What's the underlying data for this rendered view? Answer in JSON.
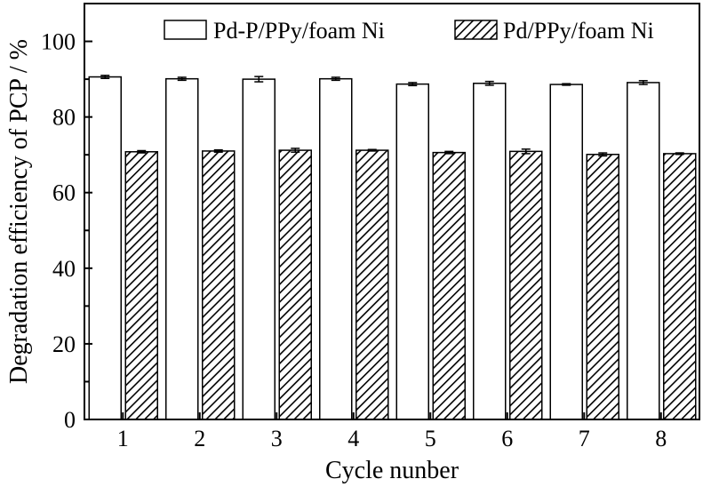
{
  "chart_data": {
    "type": "bar",
    "title": "",
    "xlabel": "Cycle nunber",
    "ylabel": "Degradation efficiency of PCP / %",
    "categories": [
      "1",
      "2",
      "3",
      "4",
      "5",
      "6",
      "7",
      "8"
    ],
    "ylim": [
      0,
      110
    ],
    "yticks": [
      "0",
      "20",
      "40",
      "60",
      "80",
      "100"
    ],
    "grid": false,
    "legend_position": "top",
    "series": [
      {
        "name": "Pd-P/PPy/foam Ni",
        "fill": "white",
        "values": [
          90.6,
          90.1,
          90.0,
          90.1,
          88.7,
          88.9,
          88.6,
          89.1
        ],
        "errors": [
          0.4,
          0.4,
          0.7,
          0.4,
          0.4,
          0.5,
          0.2,
          0.5
        ]
      },
      {
        "name": "Pd/PPy/foam Ni",
        "fill": "hatched",
        "values": [
          70.8,
          71.0,
          71.2,
          71.2,
          70.6,
          70.9,
          70.1,
          70.3
        ],
        "errors": [
          0.3,
          0.3,
          0.5,
          0.2,
          0.3,
          0.6,
          0.4,
          0.2
        ]
      }
    ]
  }
}
